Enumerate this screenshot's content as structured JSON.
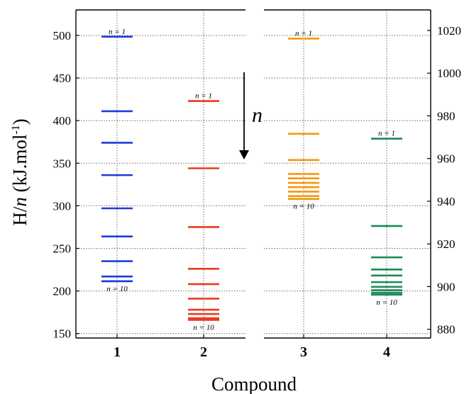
{
  "chart_data": {
    "type": "scatter",
    "title": "",
    "xlabel": "Compound",
    "ylabel": "H/n (kJ.mol-1)",
    "ylabel_parts": {
      "main": "H/",
      "italic": "n",
      "unit": " (kJ.mol",
      "sup": "-1",
      "close": ")"
    },
    "categories": [
      "1",
      "2",
      "3",
      "4"
    ],
    "grid": true,
    "left_axis": {
      "ylim": [
        145,
        530
      ],
      "ticks": [
        150,
        200,
        250,
        300,
        350,
        400,
        450,
        500
      ]
    },
    "right_axis": {
      "ylim": [
        880,
        1030
      ],
      "ticks": [
        880,
        900,
        920,
        940,
        960,
        980,
        1000,
        1020
      ]
    },
    "series": [
      {
        "category": "1",
        "axis": "left",
        "color": "#1f3bdc",
        "values": [
          498.5,
          411,
          374,
          336,
          297,
          264,
          235,
          217,
          211.5,
          211.5
        ]
      },
      {
        "category": "2",
        "axis": "left",
        "color": "#ea3a1f",
        "values": [
          423,
          344,
          275,
          226,
          208,
          191,
          178,
          173,
          168,
          166
        ]
      },
      {
        "category": "3",
        "axis": "right",
        "color": "#f6960f",
        "values": [
          1016.2,
          971.6,
          959.3,
          952.8,
          950.7,
          948.6,
          946.6,
          944.5,
          942.4,
          941.1
        ]
      },
      {
        "category": "4",
        "axis": "right",
        "color": "#1a8a55",
        "values": [
          969.3,
          928.4,
          913.7,
          908.0,
          905.2,
          902.1,
          899.9,
          898.3,
          897.1,
          896.2
        ]
      }
    ],
    "annotations": {
      "first_label": "n = 1",
      "last_label": "n = 10",
      "arrow_label": "n"
    }
  }
}
